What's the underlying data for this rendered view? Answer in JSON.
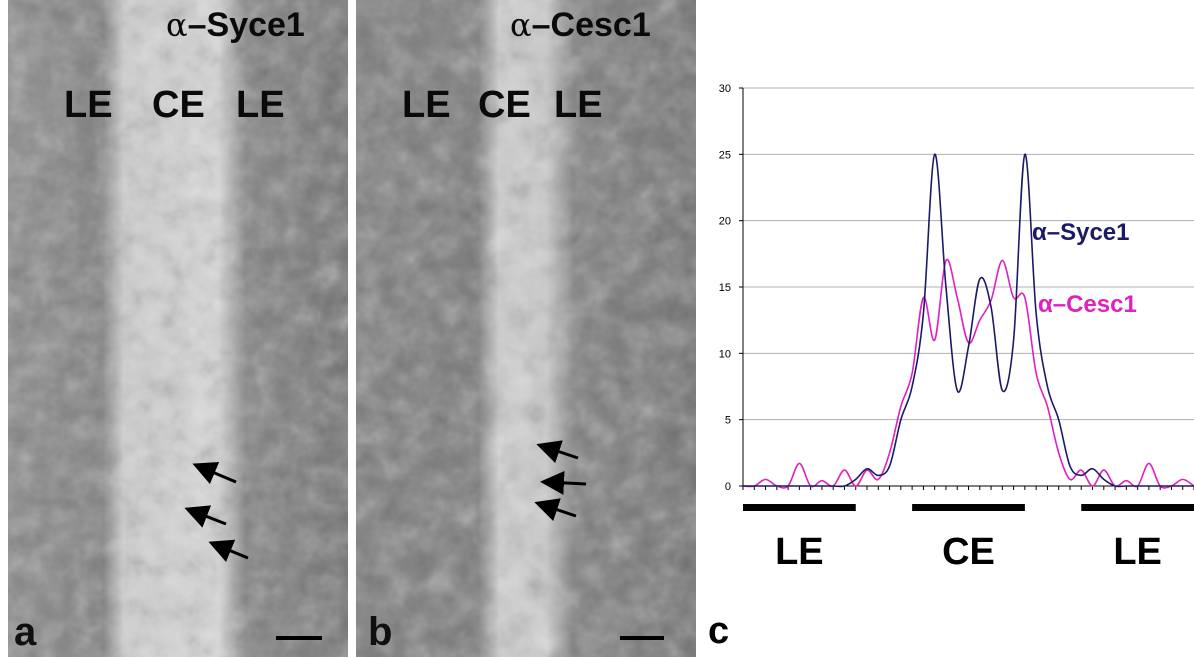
{
  "panels": [
    {
      "letter": "a",
      "title_greek": "α",
      "title_dash": "–",
      "title_name": "Syce1",
      "region_labels": [
        "LE",
        "CE",
        "LE"
      ]
    },
    {
      "letter": "b",
      "title_greek": "α",
      "title_dash": "–",
      "title_name": "Cesc1",
      "region_labels": [
        "LE",
        "CE",
        "LE"
      ]
    }
  ],
  "chart_letter": "c",
  "chart_data": {
    "type": "line",
    "ylim": [
      0,
      30
    ],
    "y_ticks": [
      0,
      5,
      10,
      15,
      20,
      25,
      30
    ],
    "xlim": [
      0,
      50
    ],
    "grid": true,
    "series": [
      {
        "name": "α–Syce1",
        "color": "#1a1a66",
        "points": [
          [
            0,
            0
          ],
          [
            1,
            0
          ],
          [
            2,
            0
          ],
          [
            3,
            0
          ],
          [
            4,
            0
          ],
          [
            5,
            0
          ],
          [
            6,
            0
          ],
          [
            7,
            0
          ],
          [
            8,
            0
          ],
          [
            9,
            0
          ],
          [
            10,
            0.5
          ],
          [
            11,
            1.3
          ],
          [
            12,
            0.8
          ],
          [
            13,
            1.5
          ],
          [
            14,
            5
          ],
          [
            15,
            7.5
          ],
          [
            16,
            13
          ],
          [
            17,
            25
          ],
          [
            18,
            15
          ],
          [
            19,
            7.2
          ],
          [
            20,
            10.5
          ],
          [
            21,
            15.6
          ],
          [
            22,
            13.5
          ],
          [
            23,
            7.2
          ],
          [
            24,
            11
          ],
          [
            25,
            25
          ],
          [
            26,
            13
          ],
          [
            27,
            7.5
          ],
          [
            28,
            5
          ],
          [
            29,
            1.5
          ],
          [
            30,
            0.8
          ],
          [
            31,
            1.3
          ],
          [
            32,
            0.5
          ],
          [
            33,
            0
          ],
          [
            34,
            0
          ],
          [
            35,
            0
          ],
          [
            36,
            0
          ],
          [
            37,
            0
          ],
          [
            38,
            0
          ],
          [
            39,
            0
          ],
          [
            40,
            0
          ]
        ]
      },
      {
        "name": "α–Cesc1",
        "color": "#e020c0",
        "points": [
          [
            0,
            0
          ],
          [
            1,
            0
          ],
          [
            2,
            0.5
          ],
          [
            3,
            0
          ],
          [
            4,
            0
          ],
          [
            5,
            1.7
          ],
          [
            6,
            0
          ],
          [
            7,
            0.4
          ],
          [
            8,
            0
          ],
          [
            9,
            1.2
          ],
          [
            10,
            0
          ],
          [
            11,
            1.2
          ],
          [
            12,
            0.5
          ],
          [
            13,
            2.5
          ],
          [
            14,
            6
          ],
          [
            15,
            8.5
          ],
          [
            16,
            14.2
          ],
          [
            17,
            11
          ],
          [
            18,
            17
          ],
          [
            19,
            14.2
          ],
          [
            20,
            10.8
          ],
          [
            21,
            12.5
          ],
          [
            22,
            14
          ],
          [
            23,
            17
          ],
          [
            24,
            14.2
          ],
          [
            25,
            14.2
          ],
          [
            26,
            8.5
          ],
          [
            27,
            6
          ],
          [
            28,
            2.5
          ],
          [
            29,
            0.5
          ],
          [
            30,
            1.2
          ],
          [
            31,
            0
          ],
          [
            32,
            1.2
          ],
          [
            33,
            0
          ],
          [
            34,
            0.4
          ],
          [
            35,
            0
          ],
          [
            36,
            1.7
          ],
          [
            37,
            0
          ],
          [
            38,
            0
          ],
          [
            39,
            0.5
          ],
          [
            40,
            0
          ]
        ]
      }
    ],
    "region_bars": [
      {
        "label": "LE",
        "from": 0,
        "to": 10
      },
      {
        "label": "CE",
        "from": 15,
        "to": 25
      },
      {
        "label": "LE",
        "from": 30,
        "to": 40
      }
    ]
  }
}
